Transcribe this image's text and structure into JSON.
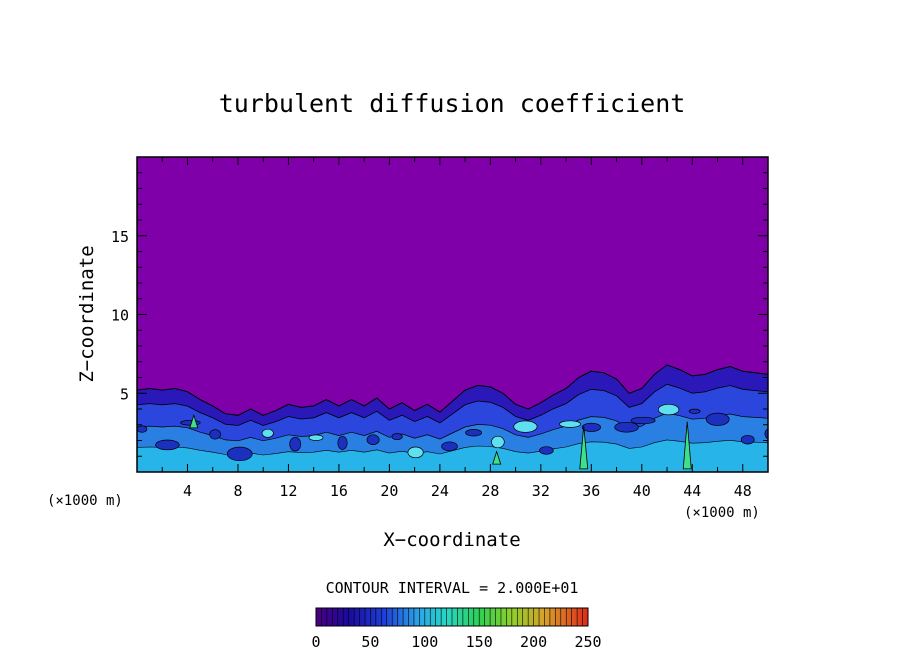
{
  "chart_data": {
    "type": "heatmap",
    "title": "turbulent diffusion coefficient",
    "xlabel": "X−coordinate",
    "ylabel": "Z−coordinate",
    "x_unit_left": "(×1000 m)",
    "x_unit_right": "(×1000 m)",
    "xlim": [
      0,
      50
    ],
    "ylim": [
      0,
      20
    ],
    "x_ticks": [
      4,
      8,
      12,
      16,
      20,
      24,
      28,
      32,
      36,
      40,
      44,
      48
    ],
    "y_ticks": [
      5,
      10,
      15
    ],
    "grid": false,
    "background_value": 0,
    "turbulent_layer_top": [
      [
        0,
        5.2
      ],
      [
        1,
        5.3
      ],
      [
        2,
        5.2
      ],
      [
        3,
        5.3
      ],
      [
        4,
        5.1
      ],
      [
        5,
        4.6
      ],
      [
        6,
        4.2
      ],
      [
        7,
        3.7
      ],
      [
        8,
        3.6
      ],
      [
        9,
        4.0
      ],
      [
        10,
        3.6
      ],
      [
        11,
        3.9
      ],
      [
        12,
        4.3
      ],
      [
        13,
        4.1
      ],
      [
        14,
        4.2
      ],
      [
        15,
        4.6
      ],
      [
        16,
        4.2
      ],
      [
        17,
        4.6
      ],
      [
        18,
        4.2
      ],
      [
        19,
        4.7
      ],
      [
        20,
        4.0
      ],
      [
        21,
        4.4
      ],
      [
        22,
        3.9
      ],
      [
        23,
        4.3
      ],
      [
        24,
        3.8
      ],
      [
        25,
        4.5
      ],
      [
        26,
        5.2
      ],
      [
        27,
        5.5
      ],
      [
        28,
        5.4
      ],
      [
        29,
        5.0
      ],
      [
        30,
        4.3
      ],
      [
        31,
        4.0
      ],
      [
        32,
        4.4
      ],
      [
        33,
        4.9
      ],
      [
        34,
        5.3
      ],
      [
        35,
        6.0
      ],
      [
        36,
        6.4
      ],
      [
        37,
        6.3
      ],
      [
        38,
        5.9
      ],
      [
        39,
        5.0
      ],
      [
        40,
        5.3
      ],
      [
        41,
        6.2
      ],
      [
        42,
        6.8
      ],
      [
        43,
        6.5
      ],
      [
        44,
        6.1
      ],
      [
        45,
        6.2
      ],
      [
        46,
        6.5
      ],
      [
        47,
        6.7
      ],
      [
        48,
        6.4
      ],
      [
        49,
        6.3
      ],
      [
        50,
        6.2
      ]
    ],
    "hot_spots": [
      {
        "x": 35.4,
        "z": 0.2,
        "value": 150,
        "height": 2.7
      },
      {
        "x": 43.6,
        "z": 0.2,
        "value": 150,
        "height": 3.0
      },
      {
        "x": 4.5,
        "z": 2.8,
        "value": 110,
        "height": 0.8
      },
      {
        "x": 28.5,
        "z": 0.5,
        "value": 130,
        "height": 0.8
      }
    ],
    "colorbar": {
      "label": "CONTOUR INTERVAL = 2.000E+01",
      "ticks": [
        0,
        50,
        100,
        150,
        200,
        250
      ],
      "range": [
        0,
        250
      ]
    }
  }
}
